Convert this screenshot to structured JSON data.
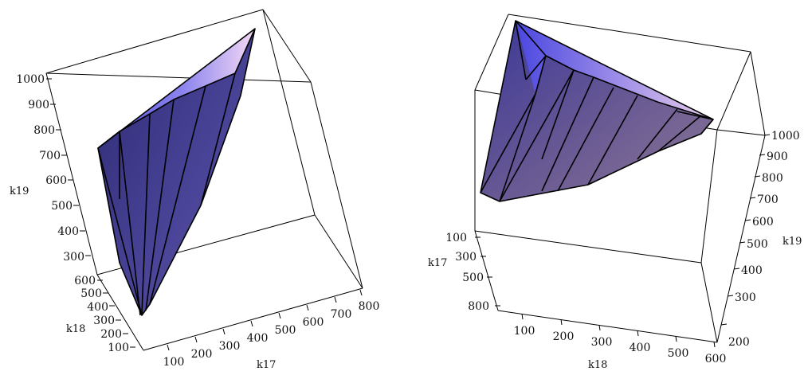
{
  "plots": [
    {
      "axes": {
        "z": {
          "title": "k19",
          "ticks": [
            "1000",
            "900",
            "800",
            "700",
            "600",
            "500",
            "400",
            "300"
          ]
        },
        "y": {
          "title": "k18",
          "ticks": [
            "600",
            "500",
            "400",
            "300",
            "200",
            "100"
          ]
        },
        "x": {
          "title": "k17",
          "ticks": [
            "100",
            "200",
            "300",
            "400",
            "500",
            "600",
            "700",
            "800"
          ]
        }
      }
    },
    {
      "axes": {
        "z": {
          "title": "k19",
          "ticks": [
            "1000",
            "900",
            "800",
            "700",
            "600",
            "500",
            "400",
            "300",
            "200"
          ]
        },
        "y": {
          "title": "k17",
          "ticks": [
            "100",
            "300",
            "500",
            "800"
          ]
        },
        "x": {
          "title": "k18",
          "ticks": [
            "100",
            "200",
            "300",
            "400",
            "500",
            "600"
          ]
        }
      }
    }
  ],
  "colors": {
    "surface_light": "#f2d6f4",
    "surface_mid": "#8a7ee8",
    "surface_dark": "#2d2a63",
    "edge": "#000000",
    "box": "#000000"
  }
}
